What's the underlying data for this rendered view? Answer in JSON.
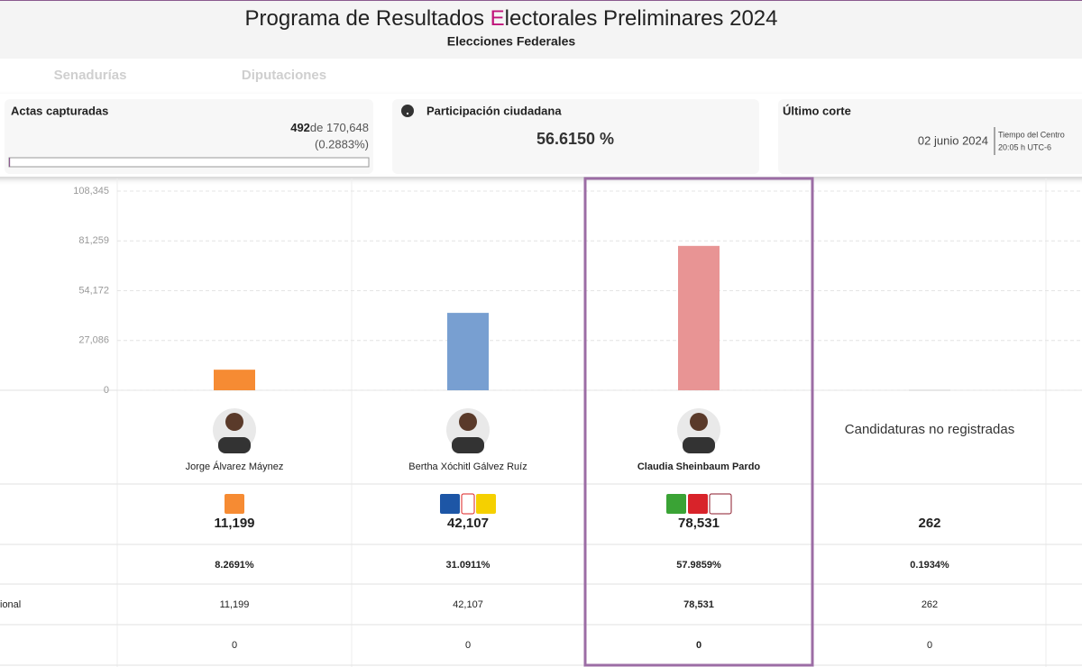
{
  "header": {
    "title_start": "Programa de Resultados ",
    "title_accent": "E",
    "title_end": "lectorales Preliminares 2024",
    "subtitle": "Elecciones Federales"
  },
  "tabs": [
    "Senadurías",
    "Diputaciones"
  ],
  "cards": {
    "actas": {
      "label": "Actas capturadas",
      "count": "492",
      "of_total": "de 170,648",
      "percent": "(0.2883%)",
      "progress": 0.2883
    },
    "participacion": {
      "label": "Participación ciudadana",
      "value": "56.6150 %"
    },
    "corte": {
      "label": "Último corte",
      "date": "02 junio 2024",
      "zone": "Tiempo del Centro",
      "time": "20:05 h UTC-6"
    }
  },
  "chart_data": {
    "type": "bar",
    "categories": [
      "Jorge Álvarez Máynez",
      "Bertha Xóchitl Gálvez Ruíz",
      "Claudia Sheinbaum Pardo",
      "Candidaturas no registradas"
    ],
    "values": [
      11199,
      42107,
      78531,
      262
    ],
    "value_labels": [
      "11,199",
      "42,107",
      "78,531",
      "262"
    ],
    "colors": [
      "#f68b33",
      "#789fd1",
      "#e89494",
      "#cfcfcf"
    ],
    "ylim": [
      0,
      108345
    ],
    "yticks": [
      0,
      {
        "value": 27086,
        "label": "27,086"
      },
      {
        "value": 54172,
        "label": "54,172"
      },
      {
        "value": 81259,
        "label": "81,259"
      },
      {
        "value": 108345,
        "label": "108,345"
      }
    ],
    "grid": true,
    "highlight_index": 2
  },
  "table": {
    "rows": [
      {
        "cells": [
          "8.2691%",
          "31.0911%",
          "57.9859%",
          "0.1934%"
        ]
      },
      {
        "label": "ional",
        "cells": [
          "11,199",
          "42,107",
          "78,531",
          "262"
        ]
      },
      {
        "cells": [
          "0",
          "0",
          "0",
          "0"
        ]
      }
    ]
  }
}
